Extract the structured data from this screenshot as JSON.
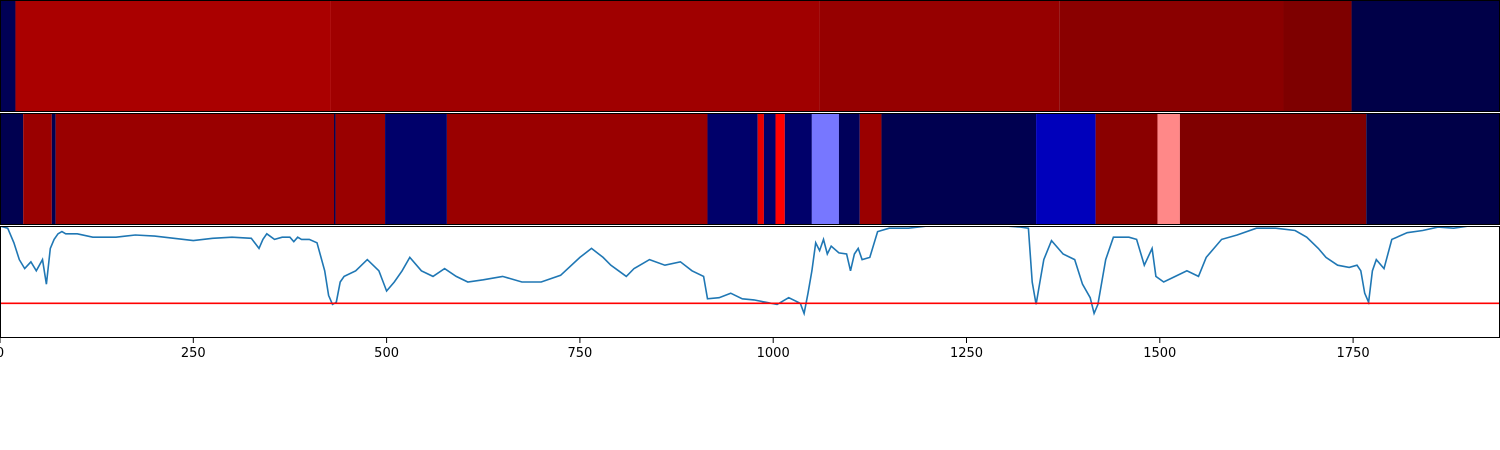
{
  "chart_data": [
    {
      "type": "heatmap",
      "panel": "top-band",
      "xlim": [
        0,
        1940
      ],
      "segments": [
        {
          "x0": 0,
          "x1": 20,
          "color": "#000055"
        },
        {
          "x0": 20,
          "x1": 428,
          "color": "#AA0000"
        },
        {
          "x0": 428,
          "x1": 1060,
          "color": "#A00000"
        },
        {
          "x0": 1060,
          "x1": 1370,
          "color": "#960000"
        },
        {
          "x0": 1370,
          "x1": 1660,
          "color": "#8A0000"
        },
        {
          "x0": 1660,
          "x1": 1748,
          "color": "#7E0000"
        },
        {
          "x0": 1748,
          "x1": 1940,
          "color": "#000048"
        }
      ]
    },
    {
      "type": "heatmap",
      "panel": "middle-band",
      "xlim": [
        0,
        1940
      ],
      "segments": [
        {
          "x0": 0,
          "x1": 30,
          "color": "#000050"
        },
        {
          "x0": 30,
          "x1": 67,
          "color": "#9A0000"
        },
        {
          "x0": 67,
          "x1": 72,
          "color": "#000050"
        },
        {
          "x0": 72,
          "x1": 432,
          "color": "#9A0000"
        },
        {
          "x0": 432,
          "x1": 434,
          "color": "#000050"
        },
        {
          "x0": 434,
          "x1": 498,
          "color": "#9A0000"
        },
        {
          "x0": 498,
          "x1": 578,
          "color": "#00006A"
        },
        {
          "x0": 578,
          "x1": 915,
          "color": "#9A0000"
        },
        {
          "x0": 915,
          "x1": 980,
          "color": "#00006A"
        },
        {
          "x0": 980,
          "x1": 988,
          "color": "#E60000"
        },
        {
          "x0": 988,
          "x1": 1003,
          "color": "#00006A"
        },
        {
          "x0": 1003,
          "x1": 1015,
          "color": "#FF0000"
        },
        {
          "x0": 1015,
          "x1": 1050,
          "color": "#00006A"
        },
        {
          "x0": 1050,
          "x1": 1085,
          "color": "#7777FF"
        },
        {
          "x0": 1085,
          "x1": 1112,
          "color": "#00005A"
        },
        {
          "x0": 1112,
          "x1": 1140,
          "color": "#9A0000"
        },
        {
          "x0": 1140,
          "x1": 1340,
          "color": "#000050"
        },
        {
          "x0": 1340,
          "x1": 1417,
          "color": "#0000BB"
        },
        {
          "x0": 1417,
          "x1": 1497,
          "color": "#8A0000"
        },
        {
          "x0": 1497,
          "x1": 1526,
          "color": "#FF8888"
        },
        {
          "x0": 1526,
          "x1": 1767,
          "color": "#800000"
        },
        {
          "x0": 1767,
          "x1": 1940,
          "color": "#000048"
        }
      ]
    },
    {
      "type": "line",
      "panel": "bottom-line",
      "xlim": [
        0,
        1940
      ],
      "ylim": [
        0,
        1
      ],
      "grid": false,
      "threshold": 0.31,
      "series_color": "#1f77b4",
      "threshold_color": "#ff0000",
      "x": [
        0,
        10,
        18,
        25,
        32,
        40,
        47,
        55,
        60,
        65,
        70,
        75,
        80,
        85,
        100,
        120,
        150,
        175,
        200,
        225,
        250,
        275,
        300,
        325,
        335,
        340,
        345,
        355,
        365,
        375,
        380,
        385,
        390,
        400,
        410,
        420,
        425,
        430,
        435,
        440,
        445,
        460,
        475,
        490,
        500,
        510,
        520,
        530,
        545,
        560,
        575,
        590,
        605,
        625,
        650,
        675,
        700,
        725,
        750,
        765,
        780,
        790,
        800,
        810,
        820,
        840,
        860,
        880,
        895,
        910,
        915,
        930,
        945,
        960,
        975,
        990,
        1005,
        1020,
        1035,
        1040,
        1045,
        1050,
        1055,
        1060,
        1065,
        1070,
        1075,
        1085,
        1095,
        1100,
        1105,
        1110,
        1115,
        1125,
        1135,
        1140,
        1150,
        1175,
        1200,
        1250,
        1300,
        1320,
        1330,
        1335,
        1340,
        1345,
        1350,
        1360,
        1375,
        1390,
        1400,
        1410,
        1415,
        1420,
        1425,
        1430,
        1440,
        1460,
        1470,
        1480,
        1490,
        1495,
        1505,
        1520,
        1535,
        1550,
        1560,
        1580,
        1600,
        1625,
        1650,
        1675,
        1690,
        1705,
        1715,
        1730,
        1745,
        1755,
        1760,
        1765,
        1770,
        1775,
        1780,
        1790,
        1800,
        1820,
        1840,
        1860,
        1880,
        1900,
        1940
      ],
      "y": [
        1.0,
        0.98,
        0.85,
        0.7,
        0.62,
        0.68,
        0.6,
        0.7,
        0.48,
        0.8,
        0.88,
        0.93,
        0.95,
        0.93,
        0.93,
        0.9,
        0.9,
        0.92,
        0.91,
        0.89,
        0.87,
        0.89,
        0.9,
        0.89,
        0.8,
        0.88,
        0.93,
        0.88,
        0.9,
        0.9,
        0.86,
        0.9,
        0.88,
        0.88,
        0.85,
        0.6,
        0.38,
        0.3,
        0.32,
        0.5,
        0.55,
        0.6,
        0.7,
        0.6,
        0.42,
        0.5,
        0.6,
        0.72,
        0.6,
        0.55,
        0.62,
        0.55,
        0.5,
        0.52,
        0.55,
        0.5,
        0.5,
        0.56,
        0.72,
        0.8,
        0.72,
        0.65,
        0.6,
        0.55,
        0.62,
        0.7,
        0.65,
        0.68,
        0.6,
        0.55,
        0.35,
        0.36,
        0.4,
        0.35,
        0.34,
        0.32,
        0.3,
        0.36,
        0.31,
        0.22,
        0.4,
        0.6,
        0.85,
        0.78,
        0.88,
        0.75,
        0.82,
        0.76,
        0.75,
        0.6,
        0.75,
        0.8,
        0.7,
        0.72,
        0.95,
        0.96,
        0.98,
        0.98,
        1.0,
        1.0,
        1.0,
        0.99,
        0.98,
        0.5,
        0.3,
        0.5,
        0.7,
        0.87,
        0.75,
        0.7,
        0.48,
        0.36,
        0.22,
        0.3,
        0.5,
        0.7,
        0.9,
        0.9,
        0.88,
        0.65,
        0.8,
        0.55,
        0.5,
        0.55,
        0.6,
        0.55,
        0.72,
        0.88,
        0.92,
        0.98,
        0.98,
        0.96,
        0.9,
        0.8,
        0.72,
        0.65,
        0.63,
        0.65,
        0.6,
        0.4,
        0.32,
        0.6,
        0.7,
        0.62,
        0.88,
        0.94,
        0.96,
        0.99,
        0.98,
        1.0,
        1.0
      ]
    }
  ],
  "xaxis": {
    "ticks": [
      {
        "value": 0,
        "label": "0"
      },
      {
        "value": 250,
        "label": "250"
      },
      {
        "value": 500,
        "label": "500"
      },
      {
        "value": 750,
        "label": "750"
      },
      {
        "value": 1000,
        "label": "1000"
      },
      {
        "value": 1250,
        "label": "1250"
      },
      {
        "value": 1500,
        "label": "1500"
      },
      {
        "value": 1750,
        "label": "1750"
      }
    ]
  }
}
